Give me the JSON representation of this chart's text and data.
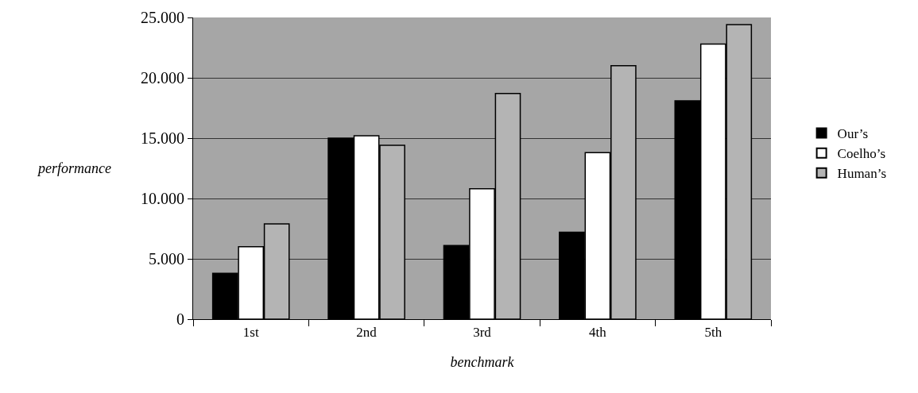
{
  "chart_data": {
    "type": "bar",
    "xlabel": "benchmark",
    "ylabel": "performance",
    "categories": [
      "1st",
      "2nd",
      "3rd",
      "4th",
      "5th"
    ],
    "series": [
      {
        "name": "Our’s",
        "color": "#000000",
        "values": [
          3800,
          15000,
          6100,
          7200,
          18100
        ]
      },
      {
        "name": "Coelho’s",
        "color": "#ffffff",
        "values": [
          6000,
          15200,
          10800,
          13800,
          22800
        ]
      },
      {
        "name": "Human’s",
        "color": "#b4b4b4",
        "values": [
          7900,
          14400,
          18700,
          21000,
          24400
        ]
      }
    ],
    "ylim": [
      0,
      25000
    ],
    "yticks": [
      {
        "value": 0,
        "label": "0"
      },
      {
        "value": 5000,
        "label": "5.000"
      },
      {
        "value": 10000,
        "label": "10.000"
      },
      {
        "value": 15000,
        "label": "15.000"
      },
      {
        "value": 20000,
        "label": "20.000"
      },
      {
        "value": 25000,
        "label": "25.000"
      }
    ],
    "grid": "y",
    "legend": "right"
  }
}
